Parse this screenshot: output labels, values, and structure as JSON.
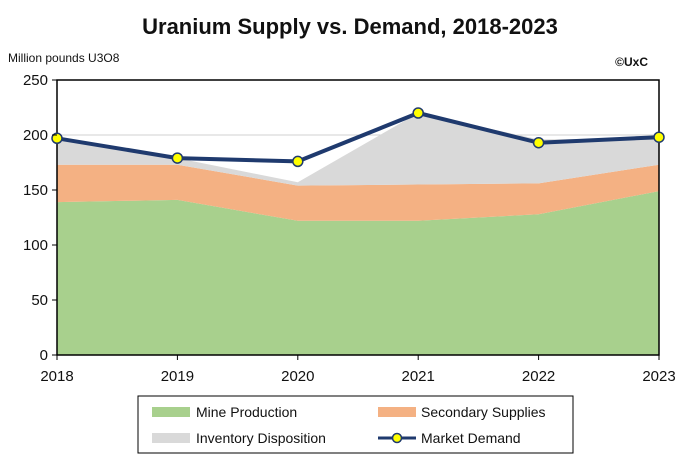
{
  "chart_data": {
    "type": "area",
    "title": "Uranium Supply vs. Demand, 2018-2023",
    "unit_label": "Million pounds U3O8",
    "copyright": "©UxC",
    "x": [
      2018,
      2019,
      2020,
      2021,
      2022,
      2023
    ],
    "ylim": [
      0,
      250
    ],
    "yticks": [
      0,
      50,
      100,
      150,
      200,
      250
    ],
    "grid": true,
    "legend_position": "bottom",
    "stacked_series": [
      {
        "name": "Mine Production",
        "color": "#a8d08d",
        "values": [
          139,
          141,
          122,
          122,
          128,
          149
        ]
      },
      {
        "name": "Secondary Supplies",
        "color": "#f4b183",
        "values": [
          34,
          32,
          32,
          33,
          28,
          24
        ]
      },
      {
        "name": "Inventory Disposition",
        "color": "#d9d9d9",
        "values": [
          24,
          6,
          3,
          65,
          40,
          24
        ]
      }
    ],
    "line_series": {
      "name": "Market Demand",
      "color": "#1f3a6e",
      "marker_color": "#ffff00",
      "values": [
        197,
        179,
        176,
        220,
        193,
        198
      ]
    }
  }
}
